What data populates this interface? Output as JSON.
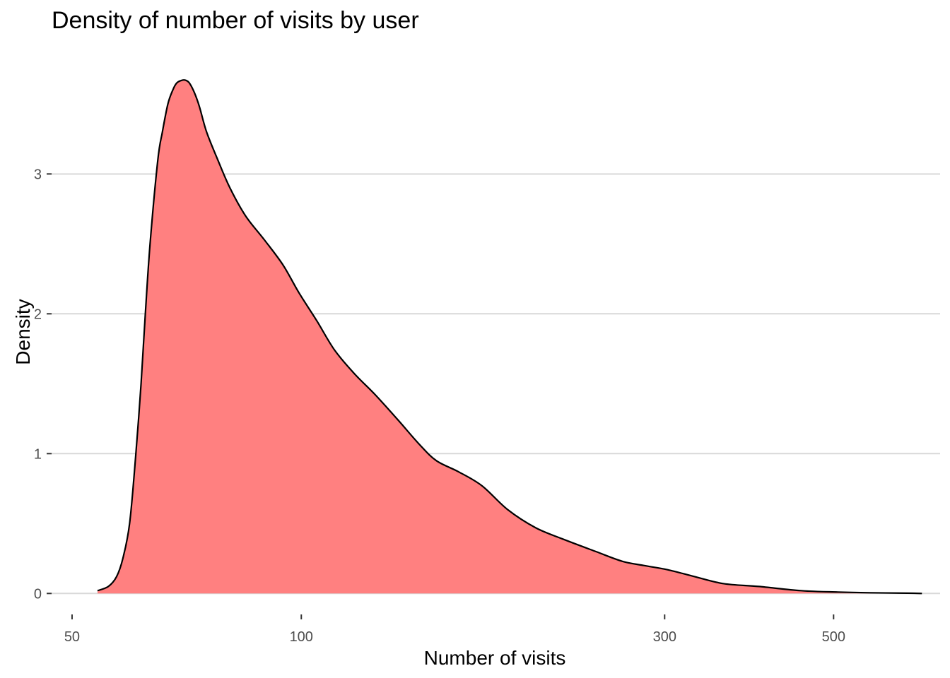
{
  "chart_data": {
    "type": "area",
    "title": "Density of number of visits by user",
    "xlabel": "Number of visits",
    "ylabel": "Density",
    "x_scale": "log10",
    "xlim": [
      47,
      690
    ],
    "ylim": [
      -0.15,
      3.84
    ],
    "x_ticks": [
      50,
      100,
      300,
      500
    ],
    "y_ticks": [
      0,
      1,
      2,
      3
    ],
    "grid": "horizontal-major",
    "legend": "none",
    "fill_color": "#FF8080",
    "line_color": "#000000",
    "grid_color": "#d9d9d9",
    "series": [
      {
        "x": [
          54,
          55.8,
          57.2,
          58.3,
          59.5,
          60.6,
          61.6,
          62.4,
          63.3,
          64.8,
          65.7,
          66.8,
          67.8,
          68.6,
          69.7,
          70.5,
          71.3,
          72.4,
          73.5,
          75.1,
          77.7,
          80.6,
          84.5,
          89.4,
          94.6,
          99.3,
          104.8,
          110.6,
          117.5,
          125.1,
          134,
          142.7,
          150.4,
          160.9,
          172.7,
          186.6,
          203.1,
          220.3,
          243.6,
          264,
          281.7,
          302.7,
          328.8,
          358.8,
          398.7,
          453.2,
          506.5,
          558.7,
          625.4,
          653.1
        ],
        "y": [
          0.02,
          0.05,
          0.12,
          0.25,
          0.5,
          0.98,
          1.5,
          2.0,
          2.5,
          3.1,
          3.3,
          3.5,
          3.6,
          3.65,
          3.67,
          3.67,
          3.65,
          3.58,
          3.48,
          3.3,
          3.1,
          2.9,
          2.7,
          2.53,
          2.35,
          2.15,
          1.95,
          1.74,
          1.57,
          1.42,
          1.24,
          1.07,
          0.95,
          0.87,
          0.77,
          0.6,
          0.47,
          0.39,
          0.3,
          0.23,
          0.2,
          0.17,
          0.12,
          0.07,
          0.05,
          0.02,
          0.01,
          0.005,
          0.002,
          0.0
        ]
      }
    ]
  }
}
